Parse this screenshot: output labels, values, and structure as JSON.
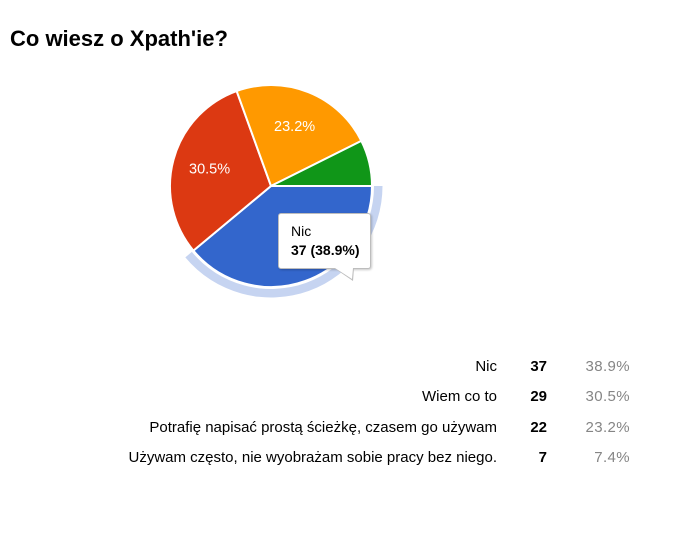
{
  "title": "Co wiesz o Xpath'ie?",
  "chart_data": {
    "type": "pie",
    "title": "Co wiesz o Xpath'ie?",
    "categories": [
      "Nic",
      "Wiem co to",
      "Potrafię napisać prostą ścieżkę, czasem go używam",
      "Używam często, nie wyobrażam sobie pracy bez niego."
    ],
    "values": [
      37,
      29,
      22,
      7
    ],
    "percents": [
      "38.9%",
      "30.5%",
      "23.2%",
      "7.4%"
    ],
    "colors": [
      "#3366CC",
      "#DC3912",
      "#FF9900",
      "#109618"
    ],
    "slice_label_visible": [
      false,
      true,
      true,
      false
    ],
    "selected_index": 0,
    "selected_category": "Nic",
    "highlight_ring_color": "#C6D4F1",
    "slice_label_color": "#ffffff",
    "start_at_clock": "3 o'clock, clockwise",
    "legend_position": "none"
  },
  "tooltip": {
    "title": "Nic",
    "value_text": "37 (38.9%)"
  },
  "table": {
    "rows": [
      {
        "label": "Nic",
        "count": "37",
        "percent": "38.9%"
      },
      {
        "label": "Wiem co to",
        "count": "29",
        "percent": "30.5%"
      },
      {
        "label": "Potrafię napisać prostą ścieżkę, czasem go używam",
        "count": "22",
        "percent": "23.2%"
      },
      {
        "label": "Używam często, nie wyobrażam sobie pracy bez niego.",
        "count": "7",
        "percent": "7.4%"
      }
    ],
    "count_color": "#000000",
    "percent_color": "#858585"
  }
}
